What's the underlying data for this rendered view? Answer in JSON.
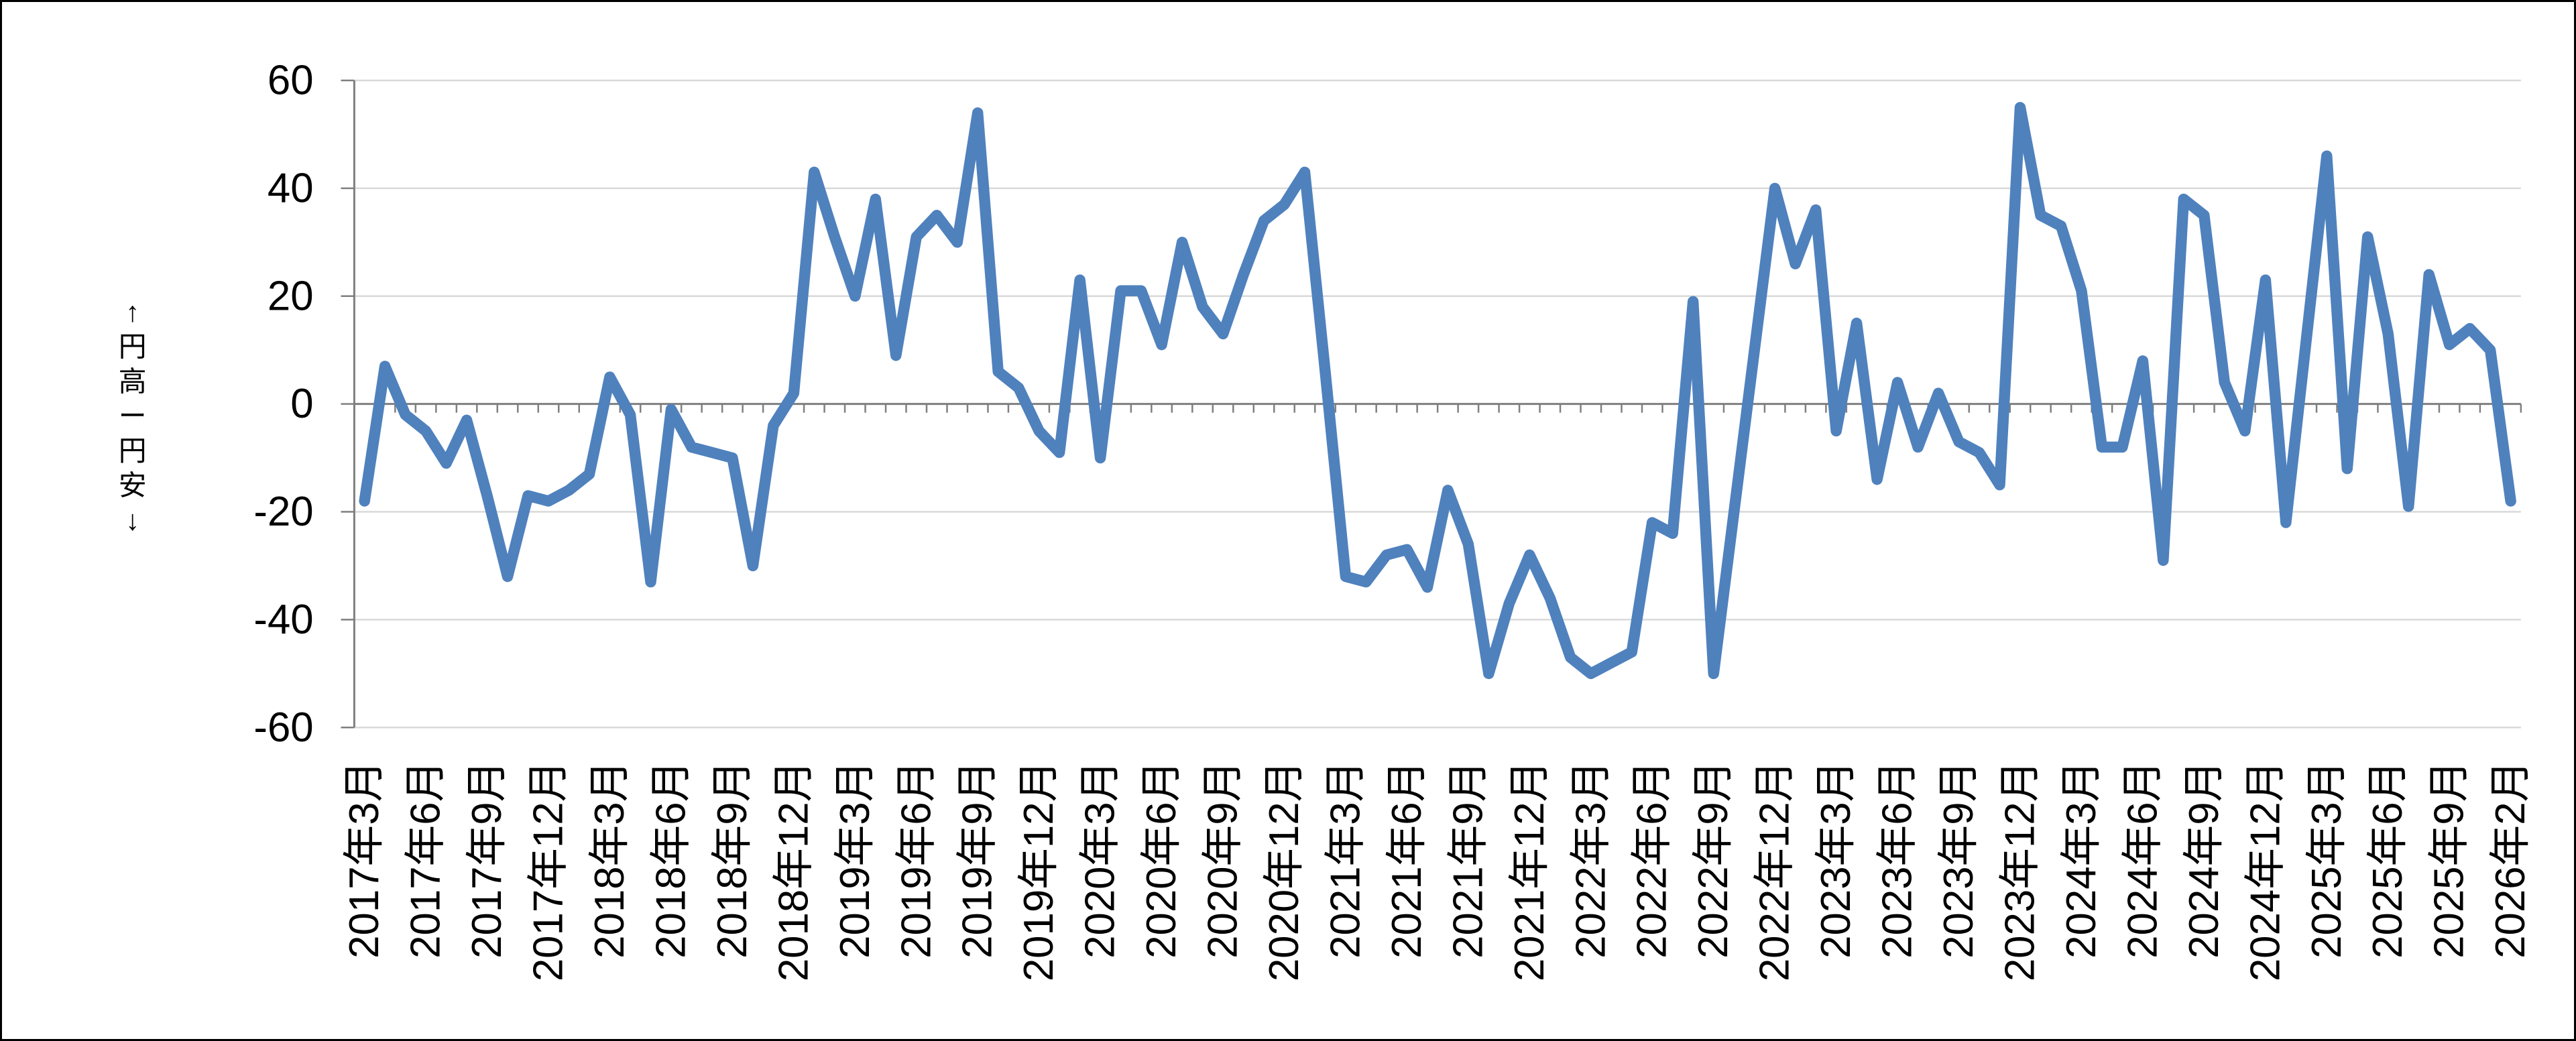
{
  "chart_data": {
    "type": "line",
    "title": "",
    "y_axis_title_vertical": "↑円高ー円安↓",
    "y_tick_labels": [
      "60",
      "40",
      "20",
      "0",
      "-20",
      "-40",
      "-60"
    ],
    "y_ticks": [
      60,
      40,
      20,
      0,
      -20,
      -40,
      -60
    ],
    "ylim": [
      -60,
      60
    ],
    "grid": true,
    "legend": "none",
    "x_label_interval": 3,
    "x_tick_labels": [
      "2017年3月",
      "2017年6月",
      "2017年9月",
      "2017年12月",
      "2018年3月",
      "2018年6月",
      "2018年9月",
      "2018年12月",
      "2019年3月",
      "2019年6月",
      "2019年9月",
      "2019年12月",
      "2020年3月",
      "2020年6月",
      "2020年9月",
      "2020年12月",
      "2021年3月",
      "2021年6月",
      "2021年9月",
      "2021年12月",
      "2022年3月",
      "2022年6月",
      "2022年9月",
      "2022年12月",
      "2023年3月",
      "2023年6月",
      "2023年9月",
      "2023年12月",
      "2024年3月",
      "2024年6月",
      "2024年9月",
      "2024年12月",
      "2025年3月",
      "2025年6月",
      "2025年9月",
      "2026年2月"
    ],
    "values": [
      -18,
      7,
      -2,
      -5,
      -11,
      -3,
      -17,
      -32,
      -17,
      -18,
      -16,
      -13,
      5,
      -2,
      -33,
      -1,
      -8,
      -9,
      -10,
      -30,
      -4,
      2,
      43,
      31,
      20,
      38,
      9,
      31,
      35,
      30,
      54,
      6,
      3,
      -5,
      -9,
      23,
      -10,
      21,
      21,
      11,
      30,
      18,
      13,
      24,
      34,
      37,
      43,
      6,
      -32,
      -33,
      -28,
      -27,
      -34,
      -16,
      -26,
      -50,
      -37,
      -28,
      -36,
      -47,
      -50,
      -48,
      -46,
      -22,
      -24,
      19,
      -50,
      -20,
      10,
      40,
      26,
      36,
      -5,
      15,
      -14,
      4,
      -8,
      2,
      -7,
      -9,
      -15,
      55,
      35,
      33,
      21,
      -8,
      -8,
      8,
      -29,
      38,
      35,
      4,
      -5,
      23,
      -22,
      12,
      46,
      -12,
      31,
      13,
      -19,
      24,
      11,
      14,
      10,
      -18
    ],
    "series_color": "#4F81BD"
  },
  "colors": {
    "line": "#4F81BD",
    "gridline": "#D9D9D9",
    "axis": "#7F7F7F",
    "text": "#000000",
    "background": "#FFFFFF",
    "figure_border": "#000000"
  }
}
